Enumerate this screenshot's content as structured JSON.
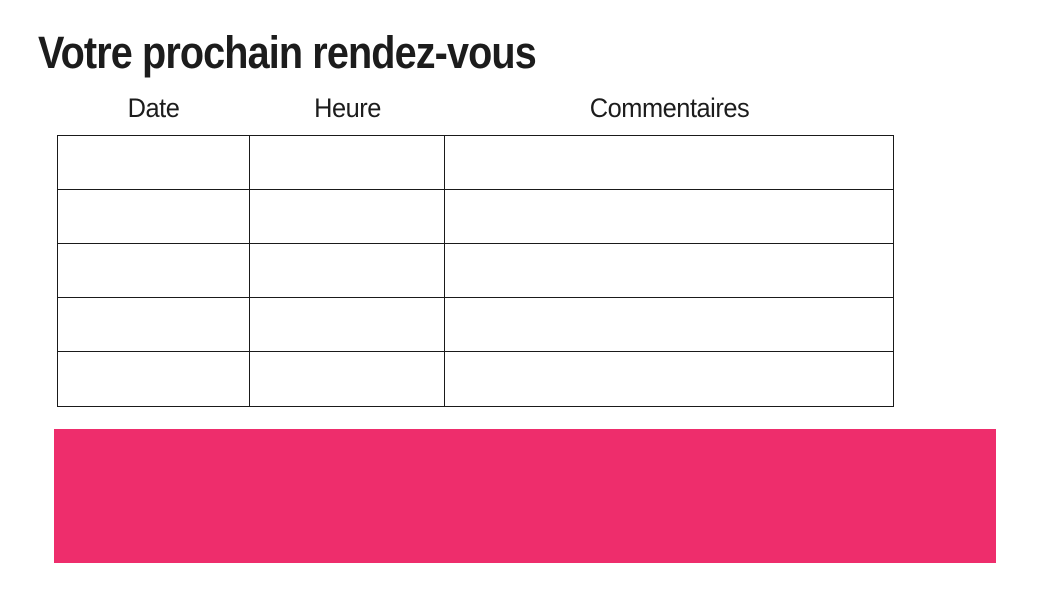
{
  "page": {
    "title": "Votre prochain rendez-vous"
  },
  "table": {
    "headers": [
      "Date",
      "Heure",
      "Commentaires"
    ],
    "rows": [
      [
        "",
        "",
        ""
      ],
      [
        "",
        "",
        ""
      ],
      [
        "",
        "",
        ""
      ],
      [
        "",
        "",
        ""
      ],
      [
        "",
        "",
        ""
      ]
    ]
  },
  "colors": {
    "background": "#ffffff",
    "text": "#1c1c1c",
    "table_border": "#1a1a1a",
    "accent_pink": "#ee2d6c"
  }
}
